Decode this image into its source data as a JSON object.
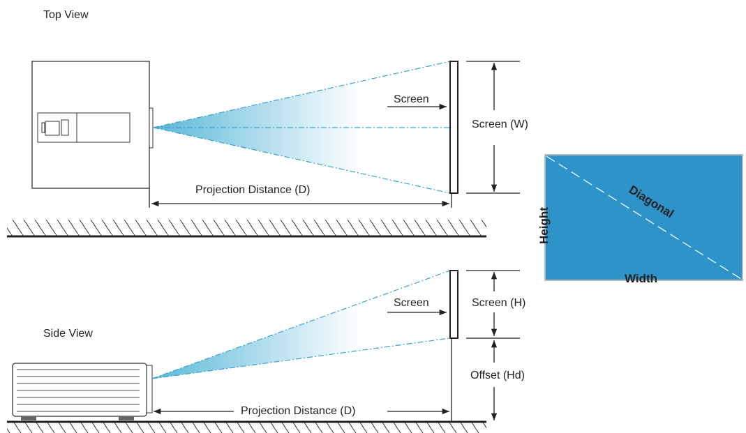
{
  "top_view": {
    "title": "Top View",
    "screen_label": "Screen",
    "screen_width": "Screen (W)",
    "distance": "Projection Distance (D)"
  },
  "side_view": {
    "title": "Side View",
    "screen_label": "Screen",
    "screen_height": "Screen (H)",
    "offset": "Offset (Hd)",
    "distance": "Projection Distance (D)"
  },
  "screen_diagram": {
    "height": "Height",
    "diagonal": "Diagonal",
    "width": "Width"
  }
}
